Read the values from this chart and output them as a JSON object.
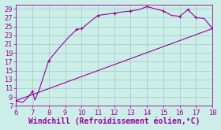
{
  "xlabel": "Windchill (Refroidissement éolien,°C)",
  "background_color": "#cceee8",
  "grid_color": "#aacccc",
  "line_color": "#990099",
  "xlim": [
    6,
    18
  ],
  "ylim": [
    7,
    30
  ],
  "xticks": [
    6,
    7,
    8,
    9,
    10,
    11,
    12,
    13,
    14,
    15,
    16,
    17,
    18
  ],
  "yticks": [
    7,
    9,
    11,
    13,
    15,
    17,
    19,
    21,
    23,
    25,
    27,
    29
  ],
  "line1_x": [
    6.0,
    6.4,
    6.7,
    7.0,
    7.15,
    7.4,
    8.0,
    8.6,
    9.2,
    9.7,
    10.0,
    11.0,
    12.0,
    12.5,
    13.0,
    13.5,
    14.0,
    14.5,
    15.0,
    15.5,
    16.0,
    16.5,
    17.0,
    17.5,
    18.0
  ],
  "line1_y": [
    8.2,
    7.8,
    8.8,
    10.3,
    8.3,
    10.5,
    17.3,
    20.0,
    22.5,
    24.3,
    24.5,
    27.5,
    28.0,
    28.3,
    28.5,
    28.8,
    29.5,
    29.0,
    28.5,
    27.5,
    27.3,
    28.8,
    27.0,
    26.8,
    24.5
  ],
  "line2_x": [
    6.0,
    18.0
  ],
  "line2_y": [
    8.2,
    24.5
  ],
  "marker": "+",
  "marker1_x": [
    6.0,
    7.0,
    8.0,
    9.7,
    10.0,
    11.0,
    12.0,
    13.0,
    14.0,
    15.0,
    16.0,
    16.5,
    17.0,
    18.0
  ],
  "marker1_y": [
    8.2,
    10.3,
    17.3,
    24.3,
    24.5,
    27.5,
    28.0,
    28.5,
    29.5,
    28.5,
    27.3,
    28.8,
    27.0,
    24.5
  ],
  "markersize": 3,
  "linewidth": 0.8,
  "tick_fontsize": 6,
  "xlabel_fontsize": 7
}
